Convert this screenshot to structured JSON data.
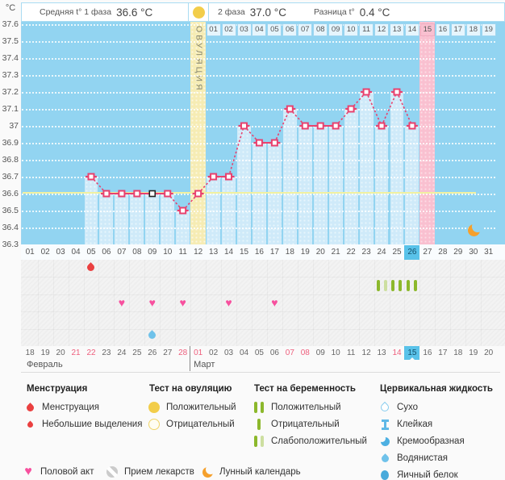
{
  "header": {
    "unit_label": "°C",
    "phase1_label": "Средняя t° 1 фаза",
    "phase1_value": "36.6 °C",
    "phase2_label": "2 фаза",
    "phase2_value": "37.0 °C",
    "diff_label": "Разница t°",
    "diff_value": "0.4 °C",
    "ovulation_test_icon": "positive-ovulation-test-icon"
  },
  "chart_data": {
    "type": "line",
    "title": "Basal body temperature cycle chart",
    "ylabel": "°C",
    "ylim": [
      36.3,
      37.6
    ],
    "yticks": [
      "37.6",
      "37.5",
      "37.4",
      "37.3",
      "37.2",
      "37.1",
      "37",
      "36.9",
      "36.8",
      "36.7",
      "36.6",
      "36.5",
      "36.4",
      "36.3"
    ],
    "days": [
      "01",
      "02",
      "03",
      "04",
      "05",
      "06",
      "07",
      "08",
      "09",
      "10",
      "11",
      "12",
      "13",
      "14",
      "15",
      "16",
      "17",
      "18",
      "19",
      "20",
      "21",
      "22",
      "23",
      "24",
      "25",
      "26",
      "27",
      "28",
      "29",
      "30",
      "31"
    ],
    "temperatures": [
      {
        "day": 5,
        "value": 36.7
      },
      {
        "day": 6,
        "value": 36.6
      },
      {
        "day": 7,
        "value": 36.6
      },
      {
        "day": 8,
        "value": 36.6
      },
      {
        "day": 9,
        "value": 36.6,
        "marker": "black"
      },
      {
        "day": 10,
        "value": 36.6
      },
      {
        "day": 11,
        "value": 36.5
      },
      {
        "day": 12,
        "value": 36.6
      },
      {
        "day": 13,
        "value": 36.7
      },
      {
        "day": 14,
        "value": 36.7
      },
      {
        "day": 15,
        "value": 37.0
      },
      {
        "day": 16,
        "value": 36.9
      },
      {
        "day": 17,
        "value": 36.9
      },
      {
        "day": 18,
        "value": 37.1
      },
      {
        "day": 19,
        "value": 37.0
      },
      {
        "day": 20,
        "value": 37.0
      },
      {
        "day": 21,
        "value": 37.0
      },
      {
        "day": 22,
        "value": 37.1
      },
      {
        "day": 23,
        "value": 37.2
      },
      {
        "day": 24,
        "value": 37.0
      },
      {
        "day": 25,
        "value": 37.2
      },
      {
        "day": 26,
        "value": 37.0
      }
    ],
    "coverline": 36.6,
    "ovulation": {
      "day": 12,
      "label": "ОВУЛЯЦИЯ"
    },
    "dpo": {
      "start_day": 13,
      "labels": [
        "01",
        "02",
        "03",
        "04",
        "05",
        "06",
        "07",
        "08",
        "09",
        "10",
        "11",
        "12",
        "13",
        "14",
        "15",
        "16",
        "17",
        "18",
        "19"
      ],
      "highlight": "15"
    },
    "today_day": "26",
    "moon_day": 30
  },
  "events": {
    "menstruation": [
      {
        "day": 5,
        "type": "menstruation"
      }
    ],
    "pregnancy_tests": [
      {
        "day": 24,
        "result": "weak_positive"
      },
      {
        "day": 25,
        "result": "positive"
      },
      {
        "day": 26,
        "result": "positive"
      }
    ],
    "intercourse_days": [
      7,
      9,
      11,
      14,
      17
    ],
    "cervical_fluid": [
      {
        "day": 9,
        "type": "watery"
      }
    ]
  },
  "calendar": {
    "months": [
      {
        "name": "Февраль",
        "dates": [
          "18",
          "19",
          "20",
          "21",
          "22",
          "23",
          "24",
          "25",
          "26",
          "27",
          "28"
        ],
        "weekend_dates": [
          "21",
          "22",
          "28"
        ]
      },
      {
        "name": "Март",
        "dates": [
          "01",
          "02",
          "03",
          "04",
          "05",
          "06",
          "07",
          "08",
          "09",
          "10",
          "11",
          "12",
          "13",
          "14",
          "15",
          "16",
          "17",
          "18",
          "19",
          "20"
        ],
        "weekend_dates": [
          "01",
          "07",
          "08",
          "14"
        ],
        "today": "15"
      }
    ]
  },
  "legend": {
    "menstruation": {
      "title": "Менструация",
      "items": [
        {
          "icon": "menstruation-drop-icon",
          "label": "Менструация"
        },
        {
          "icon": "spotting-drop-icon",
          "label": "Небольшие выделения"
        }
      ]
    },
    "ovulation_test": {
      "title": "Тест на овуляцию",
      "items": [
        {
          "icon": "positive-circle-icon",
          "label": "Положительный"
        },
        {
          "icon": "negative-circle-icon",
          "label": "Отрицательный"
        }
      ]
    },
    "pregnancy_test": {
      "title": "Тест на беременность",
      "items": [
        {
          "icon": "two-bars-icon",
          "label": "Положительный"
        },
        {
          "icon": "one-bar-icon",
          "label": "Отрицательный"
        },
        {
          "icon": "weak-bars-icon",
          "label": "Слабоположительный"
        }
      ]
    },
    "cervical_fluid": {
      "title": "Цервикальная жидкость",
      "items": [
        {
          "icon": "dry-drop-icon",
          "label": "Сухо"
        },
        {
          "icon": "sticky-icon",
          "label": "Клейкая"
        },
        {
          "icon": "creamy-icon",
          "label": "Кремообразная"
        },
        {
          "icon": "watery-drop-icon",
          "label": "Водянистая"
        },
        {
          "icon": "eggwhite-icon",
          "label": "Яичный белок"
        }
      ]
    },
    "bottom": [
      {
        "icon": "heart-icon",
        "label": "Половой акт"
      },
      {
        "icon": "pill-icon",
        "label": "Прием лекарств"
      },
      {
        "icon": "moon-icon",
        "label": "Лунный календарь"
      }
    ]
  },
  "colors": {
    "accent_pink": "#e8416e",
    "chart_bg": "#92d4f1",
    "bar_fill": "#cfeaf9",
    "ovulation_band": "#f6ecb4",
    "dpo15_band": "#f9c0d0",
    "coverline": "#f1f1a0",
    "today_highlight": "#59c2e9",
    "weekend_red": "#ee5f7d",
    "test_green": "#8cb82c",
    "heart_pink": "#f7509e",
    "moon_orange": "#f5a02c",
    "drop_red": "#ea4040",
    "fluid_blue": "#6fc2ea",
    "black_marker": "#222222"
  }
}
